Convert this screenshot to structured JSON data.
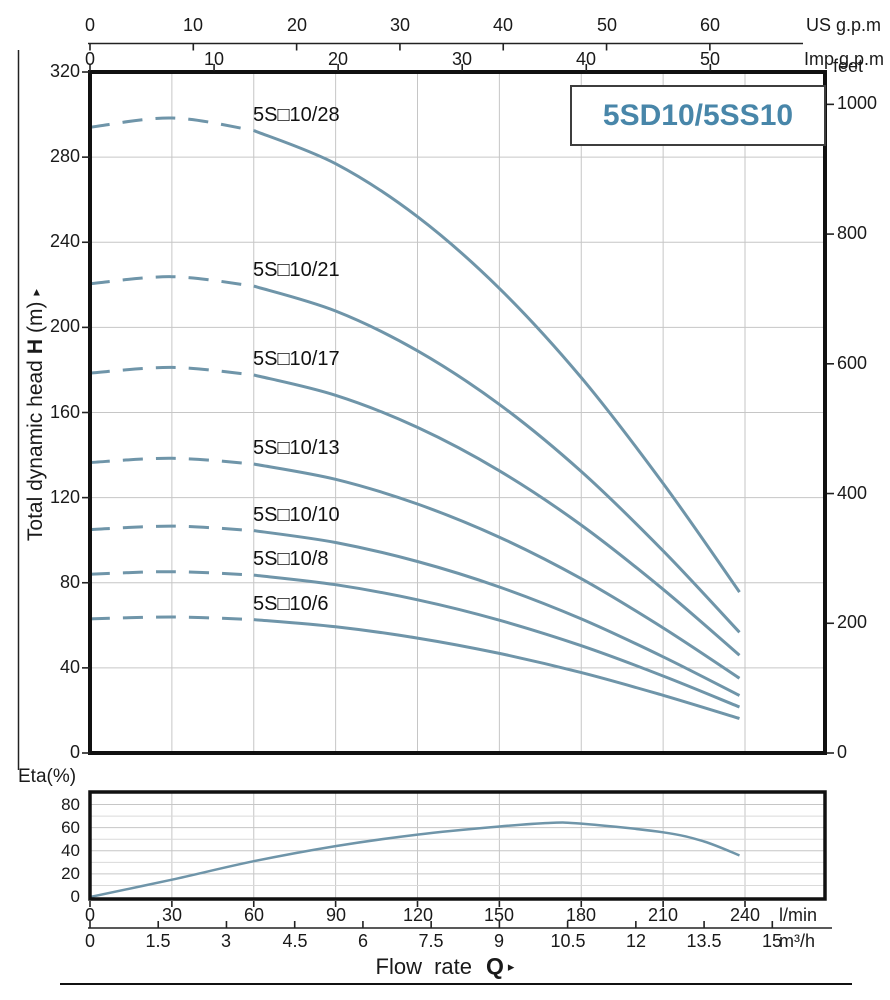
{
  "title_box": {
    "label": "5SD10/5SS10",
    "color": "#4886a9"
  },
  "axes": {
    "us_gpm": {
      "unit": "US g.p.m",
      "ticks": [
        0,
        10,
        20,
        30,
        40,
        50,
        60
      ]
    },
    "imp_gpm": {
      "unit": "Imp g.p.m",
      "ticks": [
        0,
        10,
        20,
        30,
        40,
        50
      ]
    },
    "head_m": {
      "label_prefix": "Total dynamic head",
      "label_bold": "H",
      "label_suffix": "(m)",
      "arrow": "▸",
      "ticks": [
        0,
        40,
        80,
        120,
        160,
        200,
        240,
        280,
        320
      ]
    },
    "feet": {
      "unit": "feet",
      "ticks": [
        0,
        200,
        400,
        600,
        800,
        1000
      ]
    },
    "lmin": {
      "unit": "l/min",
      "ticks": [
        0,
        30,
        60,
        90,
        120,
        150,
        180,
        210,
        240
      ]
    },
    "m3h": {
      "unit": "m³/h",
      "ticks": [
        "0",
        "1.5",
        "3",
        "4.5",
        "6",
        "7.5",
        "9",
        "10.5",
        "12",
        "13.5",
        "15"
      ]
    },
    "eta": {
      "label": "Eta(%)",
      "ticks": [
        0,
        20,
        40,
        60,
        80
      ]
    },
    "flow": {
      "label": "Flow rate",
      "symbol": "Q",
      "arrow": "▸"
    }
  },
  "colors": {
    "curve": "#6f95a9",
    "grid_major": "#c6c6c6",
    "grid_minor": "#dadada",
    "border": "#111111",
    "axis": "#222222"
  },
  "chart_data": [
    {
      "type": "line",
      "title": "5SD10/5SS10",
      "xlabel": "Flow rate Q",
      "ylabel": "Total dynamic head H (m)",
      "x_unit": "l/min",
      "x": [
        0,
        30,
        60,
        90,
        120,
        150,
        180,
        210,
        238
      ],
      "xlim": [
        0,
        269
      ],
      "ylim": [
        0,
        320
      ],
      "y2_unit": "feet",
      "y2lim": [
        0,
        1050
      ],
      "grid": true,
      "dashed_until": 60,
      "series": [
        {
          "label": "5S□10/28",
          "stages": 28,
          "values": [
            294.0,
            298.4,
            292.5,
            276.9,
            252.0,
            218.3,
            176.4,
            126.7,
            75.6
          ]
        },
        {
          "label": "5S□10/21",
          "stages": 21,
          "values": [
            220.5,
            223.8,
            219.4,
            207.7,
            189.0,
            163.8,
            132.3,
            95.0,
            56.7
          ]
        },
        {
          "label": "5S□10/17",
          "stages": 17,
          "values": [
            178.5,
            181.2,
            177.6,
            168.1,
            153.0,
            132.6,
            107.1,
            76.9,
            45.9
          ]
        },
        {
          "label": "5S□10/13",
          "stages": 13,
          "values": [
            136.5,
            138.5,
            135.8,
            128.6,
            117.0,
            101.4,
            81.9,
            58.8,
            35.1
          ]
        },
        {
          "label": "5S□10/10",
          "stages": 10,
          "values": [
            105.0,
            106.6,
            104.5,
            98.9,
            90.0,
            78.0,
            63.0,
            45.2,
            27.0
          ]
        },
        {
          "label": "5S□10/8",
          "stages": 8,
          "values": [
            84.0,
            85.2,
            83.6,
            79.1,
            72.0,
            62.4,
            50.4,
            36.2,
            21.6
          ]
        },
        {
          "label": "5S□10/6",
          "stages": 6,
          "values": [
            63.0,
            63.9,
            62.7,
            59.3,
            54.0,
            46.8,
            37.8,
            27.1,
            16.2
          ]
        }
      ]
    },
    {
      "type": "line",
      "ylabel": "Eta(%)",
      "x_unit": "l/min",
      "ylim": [
        0,
        90
      ],
      "grid": true,
      "points": {
        "x": [
          0,
          30,
          60,
          90,
          120,
          150,
          168,
          180,
          210,
          225,
          238
        ],
        "y": [
          0,
          15,
          31,
          44,
          54,
          61,
          64,
          63.5,
          56,
          48,
          36
        ]
      }
    }
  ]
}
